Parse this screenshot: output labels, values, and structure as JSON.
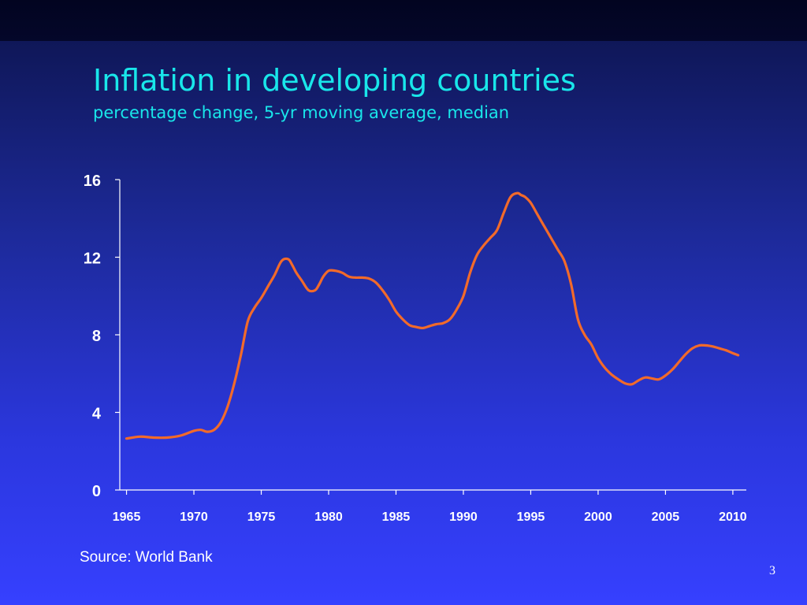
{
  "slide": {
    "title": "Inflation in developing countries",
    "subtitle": "percentage change, 5-yr moving average, median",
    "source": "Source: World Bank",
    "page_number": "3"
  },
  "colors": {
    "title": "#19e6ea",
    "line": "#f26a2a",
    "axis": "#ffffff",
    "text": "#ffffff"
  },
  "chart_data": {
    "type": "line",
    "title": "Inflation in developing countries",
    "subtitle": "percentage change, 5-yr moving average, median",
    "xlabel": "",
    "ylabel": "",
    "xlim": [
      1964.5,
      2011
    ],
    "ylim": [
      0,
      16
    ],
    "x_ticks": [
      1965,
      1970,
      1975,
      1980,
      1985,
      1990,
      1995,
      2000,
      2005,
      2010
    ],
    "y_ticks": [
      0,
      4,
      8,
      12,
      16
    ],
    "grid": false,
    "legend": "none",
    "series": [
      {
        "x": [
          1965,
          1966,
          1967,
          1968,
          1969,
          1970,
          1970.5,
          1971,
          1971.5,
          1972,
          1972.5,
          1973,
          1973.5,
          1974,
          1974.5,
          1975,
          1975.5,
          1976,
          1976.5,
          1977,
          1977.3,
          1977.6,
          1978,
          1978.5,
          1979,
          1979.3,
          1979.6,
          1980,
          1980.5,
          1981,
          1981.5,
          1982,
          1982.5,
          1983,
          1983.5,
          1984,
          1984.5,
          1985,
          1985.5,
          1986,
          1986.5,
          1987,
          1987.5,
          1988,
          1988.5,
          1989,
          1989.5,
          1990,
          1990.5,
          1991,
          1991.5,
          1992,
          1992.5,
          1993,
          1993.5,
          1994,
          1994.3,
          1994.6,
          1995,
          1995.5,
          1996,
          1996.5,
          1997,
          1997.5,
          1998,
          1998.5,
          1999,
          1999.5,
          2000,
          2000.5,
          2001,
          2001.5,
          2002,
          2002.5,
          2003,
          2003.5,
          2004,
          2004.5,
          2005,
          2005.5,
          2006,
          2006.5,
          2007,
          2007.5,
          2008,
          2008.5,
          2009,
          2009.5,
          2010,
          2010.4
        ],
        "values": [
          2.65,
          2.75,
          2.7,
          2.7,
          2.8,
          3.05,
          3.1,
          3.0,
          3.1,
          3.5,
          4.3,
          5.5,
          7.0,
          8.7,
          9.4,
          9.9,
          10.5,
          11.1,
          11.8,
          11.9,
          11.6,
          11.2,
          10.8,
          10.3,
          10.3,
          10.6,
          11.0,
          11.3,
          11.3,
          11.2,
          11.0,
          10.95,
          10.95,
          10.9,
          10.7,
          10.3,
          9.8,
          9.2,
          8.8,
          8.5,
          8.4,
          8.35,
          8.45,
          8.55,
          8.6,
          8.8,
          9.3,
          10.0,
          11.2,
          12.1,
          12.6,
          13.0,
          13.4,
          14.3,
          15.1,
          15.3,
          15.2,
          15.1,
          14.8,
          14.2,
          13.6,
          13.0,
          12.4,
          11.8,
          10.6,
          8.8,
          8.0,
          7.5,
          6.8,
          6.3,
          5.95,
          5.7,
          5.5,
          5.45,
          5.65,
          5.8,
          5.75,
          5.7,
          5.9,
          6.2,
          6.6,
          7.0,
          7.3,
          7.45,
          7.45,
          7.4,
          7.3,
          7.2,
          7.05,
          6.95
        ]
      }
    ]
  }
}
